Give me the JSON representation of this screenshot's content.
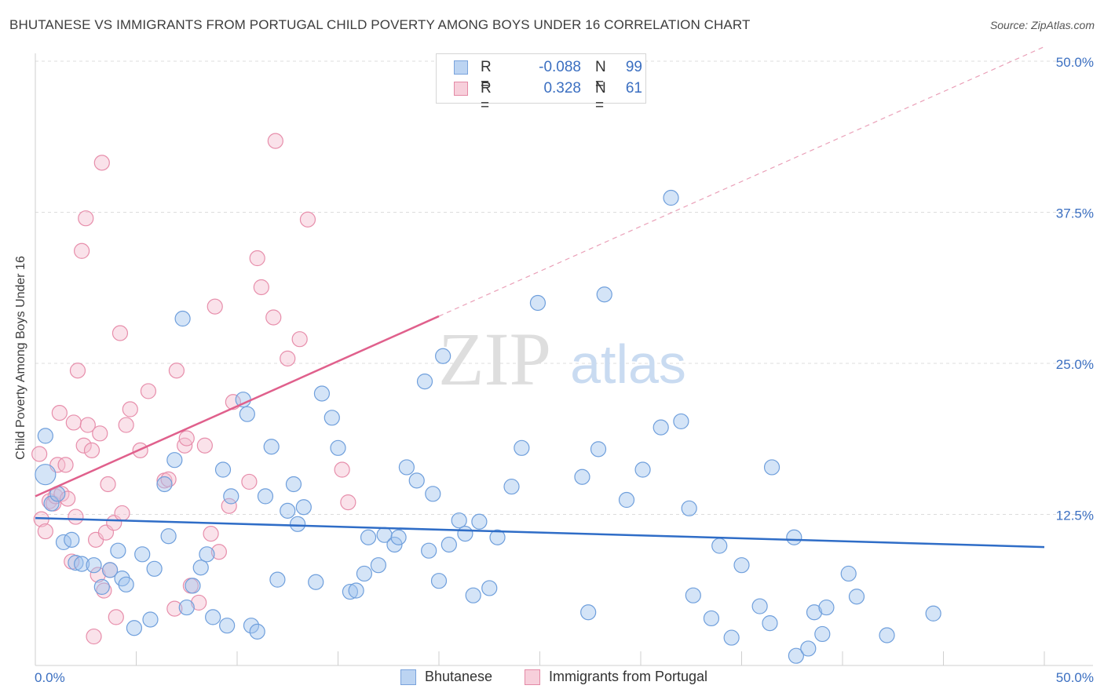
{
  "title": "BHUTANESE VS IMMIGRANTS FROM PORTUGAL CHILD POVERTY AMONG BOYS UNDER 16 CORRELATION CHART",
  "source": "Source: ZipAtlas.com",
  "watermark": {
    "zip": "ZIP",
    "atlas": "atlas"
  },
  "legend": {
    "rows": [
      {
        "r_label": "R =",
        "r_value": "-0.088",
        "n_label": "N =",
        "n_value": "99",
        "color": "#9fc0ea",
        "border": "#6b9ad8"
      },
      {
        "r_label": "R =",
        "r_value": "0.328",
        "n_label": "N =",
        "n_value": "61",
        "color": "#f5c0d0",
        "border": "#e68aa8"
      }
    ]
  },
  "bottom_legend": [
    {
      "label": "Bhutanese",
      "color": "#bcd4f2",
      "border": "#7aa3dc"
    },
    {
      "label": "Immigrants from Portugal",
      "color": "#f7cfdb",
      "border": "#e48aa6"
    }
  ],
  "chart_data": {
    "type": "scatter",
    "title": "BHUTANESE VS IMMIGRANTS FROM PORTUGAL CHILD POVERTY AMONG BOYS UNDER 16 CORRELATION CHART",
    "xlabel": "",
    "ylabel": "Child Poverty Among Boys Under 16",
    "xlim": [
      0,
      50
    ],
    "ylim": [
      0,
      50
    ],
    "x_tick_labels": [
      "0.0%",
      "50.0%"
    ],
    "y_ticks": [
      12.5,
      25.0,
      37.5,
      50.0
    ],
    "y_tick_labels": [
      "12.5%",
      "25.0%",
      "37.5%",
      "50.0%"
    ],
    "grid": true,
    "series": [
      {
        "name": "Bhutanese",
        "color": "#6f9fdc",
        "fill": "rgba(160,195,238,0.45)",
        "trend": {
          "x0": 0,
          "y0": 12.2,
          "x1": 50,
          "y1": 9.8,
          "color": "#2f6dc7"
        },
        "points": [
          [
            0.5,
            19.0
          ],
          [
            0.5,
            15.8
          ],
          [
            0.8,
            13.4
          ],
          [
            1.1,
            14.2
          ],
          [
            1.4,
            10.2
          ],
          [
            1.8,
            10.4
          ],
          [
            2.0,
            8.5
          ],
          [
            2.3,
            8.4
          ],
          [
            2.9,
            8.3
          ],
          [
            3.3,
            6.5
          ],
          [
            3.7,
            7.9
          ],
          [
            4.1,
            9.5
          ],
          [
            4.3,
            7.2
          ],
          [
            4.5,
            6.7
          ],
          [
            4.9,
            3.1
          ],
          [
            5.3,
            9.2
          ],
          [
            5.7,
            3.8
          ],
          [
            5.9,
            8.0
          ],
          [
            6.4,
            15.0
          ],
          [
            6.6,
            10.7
          ],
          [
            6.9,
            17.0
          ],
          [
            7.3,
            28.7
          ],
          [
            7.5,
            4.8
          ],
          [
            7.8,
            6.6
          ],
          [
            8.2,
            8.1
          ],
          [
            8.5,
            9.2
          ],
          [
            8.8,
            4.0
          ],
          [
            9.3,
            16.2
          ],
          [
            9.5,
            3.3
          ],
          [
            9.7,
            14.0
          ],
          [
            10.3,
            22.0
          ],
          [
            10.5,
            20.8
          ],
          [
            10.7,
            3.3
          ],
          [
            11.0,
            2.8
          ],
          [
            11.4,
            14.0
          ],
          [
            11.7,
            18.1
          ],
          [
            12.0,
            7.1
          ],
          [
            12.5,
            12.8
          ],
          [
            12.8,
            15.0
          ],
          [
            13.0,
            11.7
          ],
          [
            13.3,
            13.1
          ],
          [
            13.9,
            6.9
          ],
          [
            14.2,
            22.5
          ],
          [
            14.7,
            20.5
          ],
          [
            15.0,
            18.0
          ],
          [
            15.6,
            6.1
          ],
          [
            15.9,
            6.2
          ],
          [
            16.3,
            7.6
          ],
          [
            16.5,
            10.6
          ],
          [
            17.0,
            8.3
          ],
          [
            17.3,
            10.8
          ],
          [
            17.8,
            10.0
          ],
          [
            18.0,
            10.6
          ],
          [
            18.4,
            16.4
          ],
          [
            18.9,
            15.3
          ],
          [
            19.3,
            23.5
          ],
          [
            19.5,
            9.5
          ],
          [
            19.7,
            14.2
          ],
          [
            20.0,
            7.0
          ],
          [
            20.2,
            25.6
          ],
          [
            20.5,
            10.0
          ],
          [
            21.0,
            12.0
          ],
          [
            21.3,
            10.9
          ],
          [
            21.7,
            5.8
          ],
          [
            22.0,
            11.9
          ],
          [
            22.5,
            6.4
          ],
          [
            22.9,
            10.6
          ],
          [
            23.6,
            14.8
          ],
          [
            24.1,
            18.0
          ],
          [
            24.9,
            30.0
          ],
          [
            27.1,
            15.6
          ],
          [
            27.4,
            4.4
          ],
          [
            27.9,
            17.9
          ],
          [
            28.2,
            30.7
          ],
          [
            29.3,
            13.7
          ],
          [
            30.1,
            16.2
          ],
          [
            31.0,
            19.7
          ],
          [
            31.5,
            38.7
          ],
          [
            32.0,
            20.2
          ],
          [
            32.4,
            13.0
          ],
          [
            32.6,
            5.8
          ],
          [
            33.5,
            3.9
          ],
          [
            33.9,
            9.9
          ],
          [
            34.5,
            2.3
          ],
          [
            35.0,
            8.3
          ],
          [
            35.9,
            4.9
          ],
          [
            36.4,
            3.5
          ],
          [
            36.5,
            16.4
          ],
          [
            37.6,
            10.6
          ],
          [
            37.7,
            0.8
          ],
          [
            38.3,
            1.4
          ],
          [
            38.6,
            4.4
          ],
          [
            39.0,
            2.6
          ],
          [
            39.2,
            4.8
          ],
          [
            40.3,
            7.6
          ],
          [
            40.7,
            5.7
          ],
          [
            42.2,
            2.5
          ],
          [
            44.5,
            4.3
          ]
        ],
        "radii": {
          "0.5,19.0": 18,
          "0.5,15.8": 13
        }
      },
      {
        "name": "Immigrants from Portugal",
        "color": "#e78eab",
        "fill": "rgba(245,190,208,0.45)",
        "trend": {
          "x0": 0,
          "y0": 14.0,
          "x1": 20,
          "y1": 28.9,
          "color": "#e0608c",
          "dash_to": {
            "x": 50,
            "y": 51.2
          }
        },
        "points": [
          [
            0.2,
            17.5
          ],
          [
            0.3,
            12.1
          ],
          [
            0.5,
            11.1
          ],
          [
            0.7,
            13.6
          ],
          [
            0.9,
            13.4
          ],
          [
            1.0,
            14.0
          ],
          [
            1.1,
            16.6
          ],
          [
            1.2,
            20.9
          ],
          [
            1.3,
            14.2
          ],
          [
            1.5,
            16.6
          ],
          [
            1.6,
            13.8
          ],
          [
            1.8,
            8.6
          ],
          [
            1.9,
            20.1
          ],
          [
            2.0,
            12.3
          ],
          [
            2.1,
            24.4
          ],
          [
            2.3,
            34.3
          ],
          [
            2.4,
            18.2
          ],
          [
            2.5,
            37.0
          ],
          [
            2.6,
            19.9
          ],
          [
            2.8,
            17.8
          ],
          [
            2.9,
            2.4
          ],
          [
            3.0,
            10.4
          ],
          [
            3.1,
            7.5
          ],
          [
            3.2,
            19.2
          ],
          [
            3.3,
            41.6
          ],
          [
            3.4,
            6.2
          ],
          [
            3.5,
            11.0
          ],
          [
            3.6,
            15.0
          ],
          [
            3.7,
            7.9
          ],
          [
            3.9,
            11.8
          ],
          [
            4.0,
            4.0
          ],
          [
            4.2,
            27.5
          ],
          [
            4.3,
            12.6
          ],
          [
            4.5,
            19.9
          ],
          [
            4.7,
            21.2
          ],
          [
            5.2,
            17.8
          ],
          [
            5.6,
            22.7
          ],
          [
            6.4,
            15.3
          ],
          [
            6.6,
            15.4
          ],
          [
            6.9,
            4.7
          ],
          [
            7.0,
            24.4
          ],
          [
            7.4,
            18.2
          ],
          [
            7.5,
            18.8
          ],
          [
            7.7,
            6.6
          ],
          [
            8.1,
            5.2
          ],
          [
            8.4,
            18.2
          ],
          [
            8.7,
            10.9
          ],
          [
            8.9,
            29.7
          ],
          [
            9.1,
            9.4
          ],
          [
            9.6,
            13.2
          ],
          [
            9.8,
            21.8
          ],
          [
            10.6,
            15.2
          ],
          [
            11.0,
            33.7
          ],
          [
            11.2,
            31.3
          ],
          [
            11.8,
            28.8
          ],
          [
            11.9,
            43.4
          ],
          [
            12.5,
            25.4
          ],
          [
            13.1,
            27.0
          ],
          [
            13.5,
            36.9
          ],
          [
            15.2,
            16.2
          ],
          [
            15.5,
            13.5
          ]
        ]
      }
    ]
  }
}
